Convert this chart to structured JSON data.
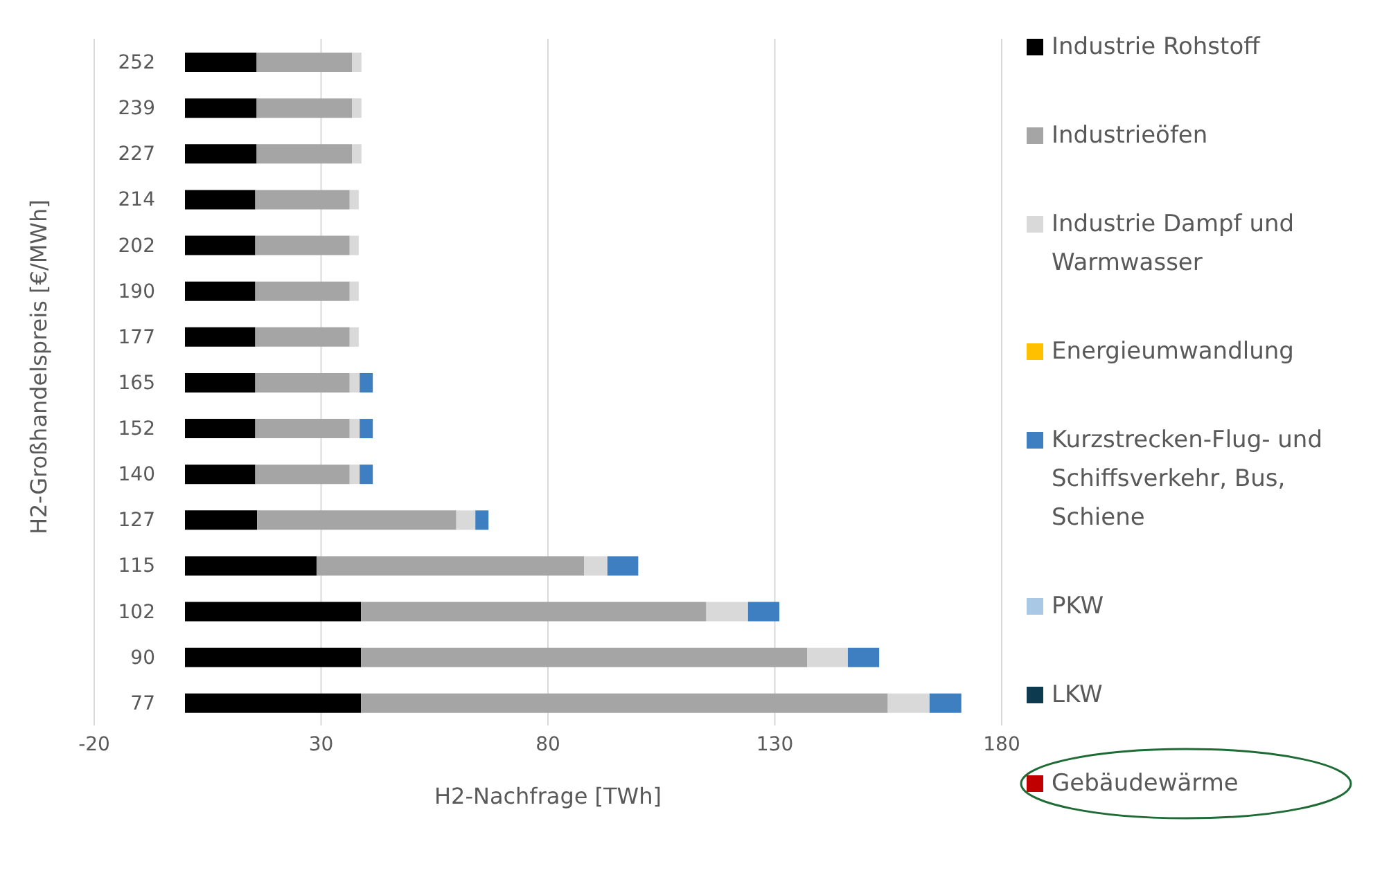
{
  "chart_data": {
    "type": "bar",
    "orientation": "horizontal",
    "stacked": true,
    "xlabel": "H2-Nachfrage [TWh]",
    "ylabel": "H2-Großhandelspreis [€/MWh]",
    "categories": [
      "252",
      "239",
      "227",
      "214",
      "202",
      "190",
      "177",
      "165",
      "152",
      "140",
      "127",
      "115",
      "102",
      "90",
      "77"
    ],
    "series": [
      {
        "name": "Industrie Rohstoff",
        "color": "#000000",
        "values": [
          15.8,
          15.8,
          15.8,
          15.5,
          15.5,
          15.5,
          15.5,
          15.5,
          15.5,
          15.5,
          15.9,
          29,
          38.8,
          38.8,
          38.8
        ]
      },
      {
        "name": "Industrieöfen",
        "color": "#a5a5a5",
        "values": [
          21,
          21,
          21,
          20.8,
          20.8,
          20.8,
          20.8,
          20.8,
          20.8,
          20.8,
          43.9,
          59,
          76.1,
          98.3,
          116.1
        ]
      },
      {
        "name": "Industrie Dampf und Warmwasser",
        "color": "#d9d9d9",
        "values": [
          2.1,
          2.1,
          2.1,
          2,
          2,
          2,
          2,
          2.2,
          2.2,
          2.2,
          4.2,
          5.1,
          9.2,
          9,
          9.2
        ]
      },
      {
        "name": "Energieumwandlung",
        "color": "#ffc000",
        "values": [
          0,
          0,
          0,
          0,
          0,
          0,
          0,
          0,
          0,
          0,
          0,
          0,
          0,
          0,
          0
        ]
      },
      {
        "name": "Kurzstrecken-Flug- und Schiffsverkehr, Bus, Schiene",
        "color": "#3e7fc1",
        "values": [
          0,
          0,
          0,
          0,
          0,
          0,
          0,
          2.9,
          2.9,
          2.9,
          2.9,
          6.8,
          6.9,
          6.9,
          7
        ]
      },
      {
        "name": "PKW",
        "color": "#a9c8e6",
        "values": [
          0,
          0,
          0,
          0,
          0,
          0,
          0,
          0,
          0,
          0,
          0,
          0,
          0,
          0,
          0
        ]
      },
      {
        "name": "LKW",
        "color": "#0d3a4f",
        "values": [
          0,
          0,
          0,
          0,
          0,
          0,
          0,
          0,
          0,
          0,
          0,
          0,
          0,
          0,
          0
        ]
      },
      {
        "name": "Gebäudewärme",
        "color": "#c00000",
        "values": [
          0,
          0,
          0,
          0,
          0,
          0,
          0,
          0,
          0,
          0,
          0,
          0,
          0,
          0,
          0
        ]
      }
    ],
    "xlim": [
      -20,
      180
    ],
    "xticks": [
      -20,
      30,
      80,
      130,
      180
    ],
    "grid": "x",
    "legend": "right"
  }
}
